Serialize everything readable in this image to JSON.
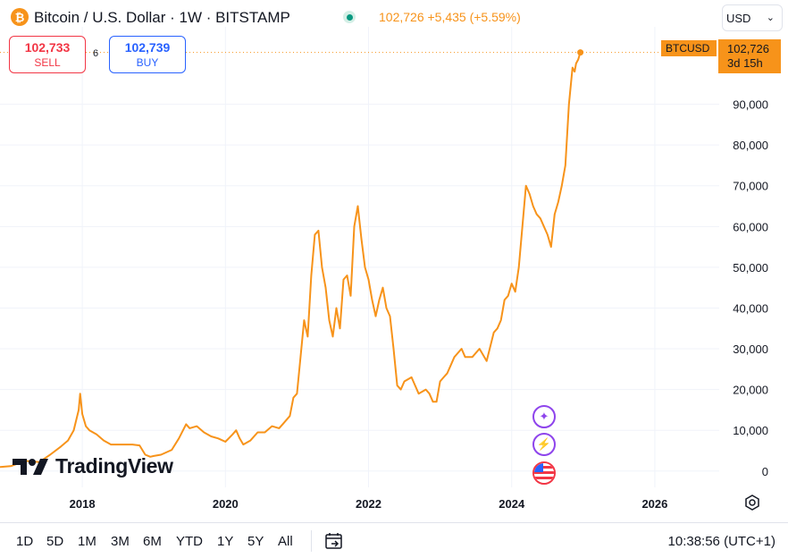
{
  "header": {
    "symbol_icon": "bitcoin-icon",
    "title": "Bitcoin / U.S. Dollar · 1W · BITSTAMP",
    "price_info": "102,726 +5,435 (+5.59%)",
    "currency": "USD"
  },
  "trade": {
    "sell_price": "102,733",
    "sell_label": "SELL",
    "spread": "6",
    "buy_price": "102,739",
    "buy_label": "BUY"
  },
  "price_tag": {
    "symbol": "BTCUSD",
    "price": "102,726",
    "countdown": "3d 15h"
  },
  "logo": "TradingView",
  "toolbar": {
    "ranges": [
      "1D",
      "5D",
      "1M",
      "3M",
      "6M",
      "YTD",
      "1Y",
      "5Y",
      "All"
    ],
    "clock": "10:38:56 (UTC+1)"
  },
  "colors": {
    "line": "#f7931a",
    "grid": "#f0f3fa"
  },
  "chart_data": {
    "type": "line",
    "series": [
      {
        "x": [
          2016.85,
          2017.0,
          2017.2,
          2017.4,
          2017.55,
          2017.7,
          2017.8,
          2017.88,
          2017.95,
          2017.97,
          2018.0,
          2018.05,
          2018.1,
          2018.2,
          2018.3,
          2018.4,
          2018.5,
          2018.6,
          2018.7,
          2018.8,
          2018.88,
          2018.95,
          2019.0,
          2019.1,
          2019.25,
          2019.35,
          2019.45,
          2019.5,
          2019.6,
          2019.7,
          2019.8,
          2019.9,
          2020.0,
          2020.1,
          2020.15,
          2020.2,
          2020.25,
          2020.35,
          2020.45,
          2020.55,
          2020.65,
          2020.75,
          2020.8,
          2020.9,
          2020.95,
          2021.0,
          2021.05,
          2021.1,
          2021.15,
          2021.2,
          2021.25,
          2021.3,
          2021.35,
          2021.4,
          2021.45,
          2021.5,
          2021.55,
          2021.6,
          2021.65,
          2021.7,
          2021.75,
          2021.8,
          2021.85,
          2021.9,
          2021.95,
          2022.0,
          2022.05,
          2022.1,
          2022.15,
          2022.2,
          2022.25,
          2022.3,
          2022.35,
          2022.4,
          2022.45,
          2022.5,
          2022.6,
          2022.7,
          2022.8,
          2022.85,
          2022.9,
          2022.95,
          2023.0,
          2023.05,
          2023.1,
          2023.15,
          2023.2,
          2023.25,
          2023.3,
          2023.35,
          2023.45,
          2023.55,
          2023.65,
          2023.75,
          2023.8,
          2023.85,
          2023.9,
          2023.95,
          2024.0,
          2024.05,
          2024.1,
          2024.15,
          2024.2,
          2024.25,
          2024.3,
          2024.35,
          2024.4,
          2024.45,
          2024.5,
          2024.55,
          2024.6,
          2024.65,
          2024.7,
          2024.75,
          2024.8,
          2024.85,
          2024.88,
          2024.9,
          2024.93,
          2024.96
        ],
        "y": [
          1000,
          1200,
          2500,
          2200,
          4000,
          6000,
          7500,
          10000,
          15000,
          19000,
          14000,
          11000,
          10000,
          9000,
          7500,
          6500,
          6500,
          6500,
          6500,
          6300,
          4000,
          3500,
          3700,
          4000,
          5200,
          8000,
          11500,
          10500,
          11000,
          9500,
          8500,
          8000,
          7200,
          9000,
          10000,
          8000,
          6500,
          7500,
          9500,
          9500,
          11000,
          10500,
          11500,
          13500,
          18000,
          19000,
          28000,
          37000,
          33000,
          48000,
          58000,
          59000,
          50000,
          45000,
          37000,
          33000,
          40000,
          35000,
          47000,
          48000,
          43000,
          60000,
          65000,
          57000,
          50000,
          47000,
          42000,
          38000,
          42000,
          45000,
          40000,
          38000,
          30000,
          21000,
          20000,
          22000,
          23000,
          19000,
          20000,
          19000,
          17000,
          17000,
          22000,
          23000,
          24000,
          26000,
          28000,
          29000,
          30000,
          28000,
          28000,
          30000,
          27000,
          34000,
          35000,
          37000,
          42000,
          43000,
          46000,
          44000,
          50000,
          60000,
          70000,
          68000,
          65000,
          63000,
          62000,
          60000,
          58000,
          55000,
          63000,
          66000,
          70000,
          75000,
          90000,
          99000,
          98000,
          100000,
          101000,
          102726
        ]
      }
    ],
    "xlim": [
      2016.85,
      2026.9
    ],
    "ylim": [
      -4000,
      109000
    ],
    "y_ticks": [
      0,
      10000,
      20000,
      30000,
      40000,
      50000,
      60000,
      70000,
      80000,
      90000
    ],
    "y_tick_labels": [
      "0",
      "10,000",
      "20,000",
      "30,000",
      "40,000",
      "50,000",
      "60,000",
      "70,000",
      "80,000",
      "90,000"
    ],
    "x_ticks": [
      2018,
      2020,
      2022,
      2024,
      2026
    ],
    "x_tick_labels": [
      "2018",
      "2020",
      "2022",
      "2024",
      "2026"
    ],
    "last_value": 102726,
    "grid": true,
    "axis_position": "right"
  }
}
